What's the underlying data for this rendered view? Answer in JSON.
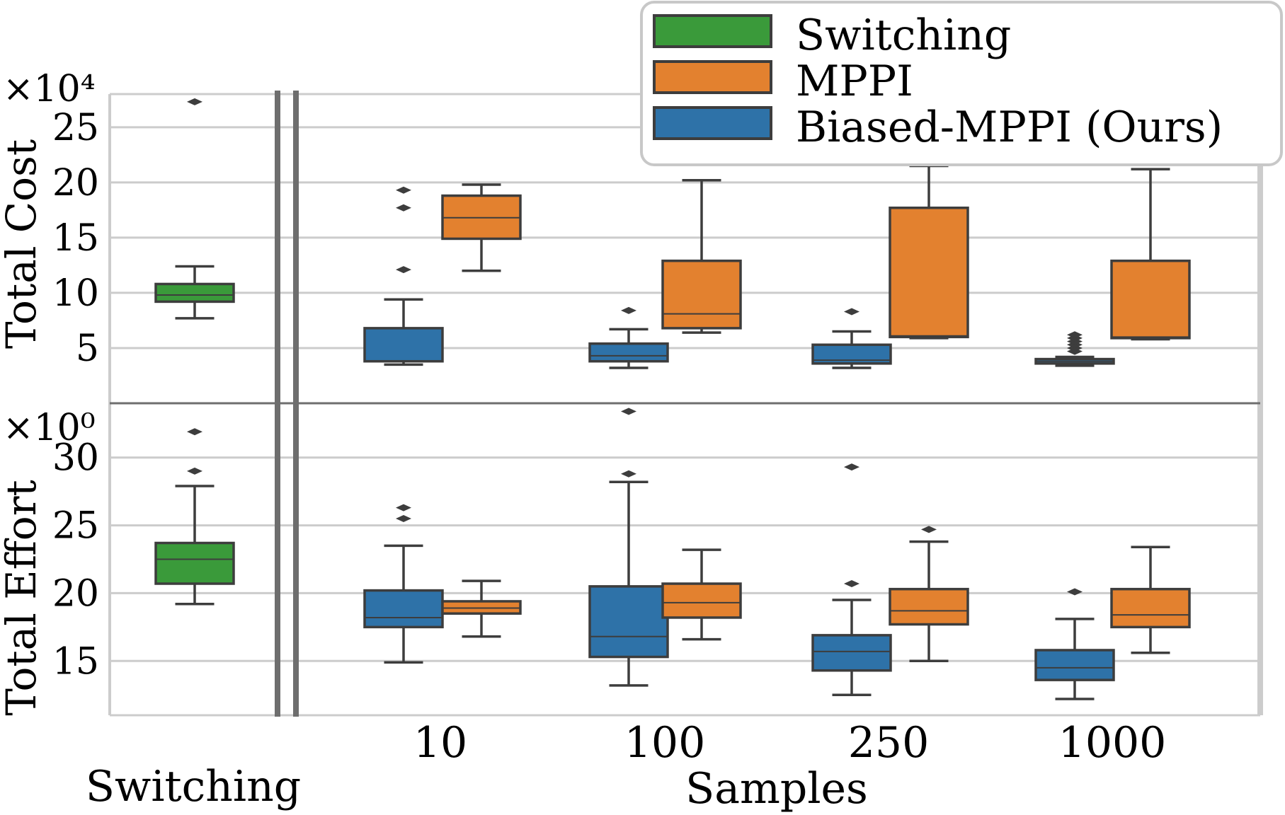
{
  "colors": {
    "switching": "#3a9a3a",
    "mppi": "#e3812f",
    "biased": "#2e72a8",
    "edge": "#3d3d3d",
    "grid": "#cccccc",
    "divider": "#6e6e6e"
  },
  "legend": {
    "items": [
      {
        "label": "Switching",
        "color_key": "switching"
      },
      {
        "label": "MPPI",
        "color_key": "mppi"
      },
      {
        "label": "Biased-MPPI (Ours)",
        "color_key": "biased"
      }
    ]
  },
  "chart_data": [
    {
      "type": "box",
      "name": "total-cost",
      "ylabel": "Total Cost",
      "scale_label": "×10⁴",
      "ylim": [
        0,
        28
      ],
      "yticks": [
        5,
        10,
        15,
        20,
        25
      ],
      "groups": [
        {
          "category": "Switching",
          "series": "switching",
          "whislo": 7.7,
          "q1": 9.2,
          "med": 9.8,
          "q3": 10.8,
          "whishi": 12.4,
          "fliers": [
            27.3
          ]
        },
        {
          "category": "10",
          "series": "biased",
          "whislo": 3.5,
          "q1": 3.8,
          "med": 3.8,
          "q3": 6.8,
          "whishi": 9.4,
          "fliers": [
            12.1,
            17.7,
            19.3
          ]
        },
        {
          "category": "10",
          "series": "mppi",
          "whislo": 12.0,
          "q1": 14.9,
          "med": 16.8,
          "q3": 18.8,
          "whishi": 19.8,
          "fliers": []
        },
        {
          "category": "100",
          "series": "biased",
          "whislo": 3.2,
          "q1": 3.8,
          "med": 4.3,
          "q3": 5.4,
          "whishi": 6.7,
          "fliers": [
            8.4
          ]
        },
        {
          "category": "100",
          "series": "mppi",
          "whislo": 6.4,
          "q1": 6.8,
          "med": 8.1,
          "q3": 12.9,
          "whishi": 20.2,
          "fliers": []
        },
        {
          "category": "250",
          "series": "biased",
          "whislo": 3.2,
          "q1": 3.6,
          "med": 3.9,
          "q3": 5.3,
          "whishi": 6.5,
          "fliers": [
            8.3
          ]
        },
        {
          "category": "250",
          "series": "mppi",
          "whislo": 5.9,
          "q1": 6.0,
          "med": 6.1,
          "q3": 17.7,
          "whishi": 21.5,
          "fliers": []
        },
        {
          "category": "1000",
          "series": "biased",
          "whislo": 3.4,
          "q1": 3.6,
          "med": 3.8,
          "q3": 4.0,
          "whishi": 4.2,
          "fliers": [
            4.7,
            5.0,
            5.3,
            5.6,
            5.9,
            6.2
          ]
        },
        {
          "category": "1000",
          "series": "mppi",
          "whislo": 5.8,
          "q1": 5.9,
          "med": 6.0,
          "q3": 12.9,
          "whishi": 21.2,
          "fliers": []
        }
      ]
    },
    {
      "type": "box",
      "name": "total-effort",
      "ylabel": "Total Effort",
      "scale_label": "×10⁰",
      "ylim": [
        11,
        34
      ],
      "yticks": [
        15,
        20,
        25,
        30
      ],
      "groups": [
        {
          "category": "Switching",
          "series": "switching",
          "whislo": 19.2,
          "q1": 20.7,
          "med": 22.5,
          "q3": 23.7,
          "whishi": 27.9,
          "fliers": [
            29.0,
            31.9
          ]
        },
        {
          "category": "10",
          "series": "biased",
          "whislo": 14.9,
          "q1": 17.5,
          "med": 18.2,
          "q3": 20.2,
          "whishi": 23.5,
          "fliers": [
            25.5,
            26.3
          ]
        },
        {
          "category": "10",
          "series": "mppi",
          "whislo": 16.8,
          "q1": 18.5,
          "med": 18.9,
          "q3": 19.4,
          "whishi": 20.9,
          "fliers": []
        },
        {
          "category": "100",
          "series": "biased",
          "whislo": 13.2,
          "q1": 15.3,
          "med": 16.8,
          "q3": 20.5,
          "whishi": 28.2,
          "fliers": [
            28.8,
            33.4
          ]
        },
        {
          "category": "100",
          "series": "mppi",
          "whislo": 16.6,
          "q1": 18.2,
          "med": 19.3,
          "q3": 20.7,
          "whishi": 23.2,
          "fliers": []
        },
        {
          "category": "250",
          "series": "biased",
          "whislo": 12.5,
          "q1": 14.3,
          "med": 15.7,
          "q3": 16.9,
          "whishi": 19.5,
          "fliers": [
            20.7,
            29.3
          ]
        },
        {
          "category": "250",
          "series": "mppi",
          "whislo": 15.0,
          "q1": 17.7,
          "med": 18.7,
          "q3": 20.3,
          "whishi": 23.8,
          "fliers": [
            24.7
          ]
        },
        {
          "category": "1000",
          "series": "biased",
          "whislo": 12.2,
          "q1": 13.6,
          "med": 14.5,
          "q3": 15.8,
          "whishi": 18.1,
          "fliers": [
            20.1
          ]
        },
        {
          "category": "1000",
          "series": "mppi",
          "whislo": 15.6,
          "q1": 17.5,
          "med": 18.4,
          "q3": 20.3,
          "whishi": 23.4,
          "fliers": []
        }
      ]
    }
  ],
  "x_axis": {
    "left_category": "Switching",
    "xlabel": "Samples",
    "tick_labels": [
      "10",
      "100",
      "250",
      "1000"
    ]
  }
}
